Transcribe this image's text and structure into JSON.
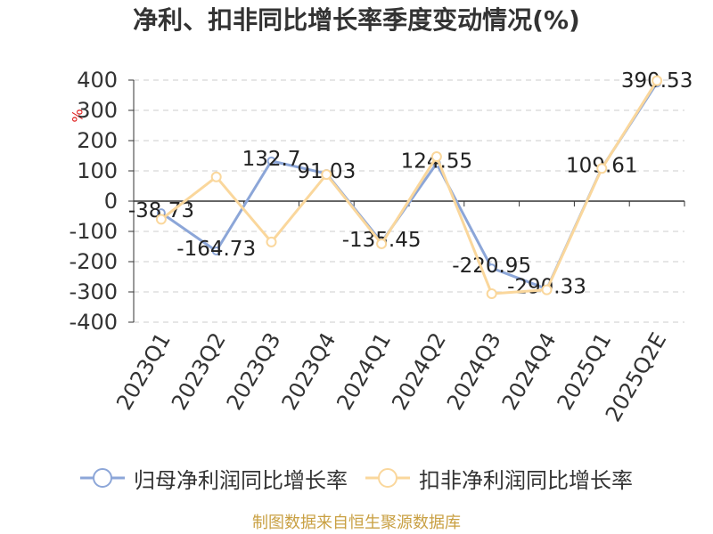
{
  "footer": "制图数据来自恒生聚源数据库",
  "colors": {
    "title": "#333333",
    "footer": "#c9a043",
    "ylabel": "#e0201f",
    "grid": "#cccccc",
    "axis": "#333333"
  },
  "chart_data": {
    "type": "line",
    "title": "净利、扣非同比增长率季度变动情况(%)",
    "xlabel": "",
    "ylabel": "%",
    "ylim": [
      -400,
      400
    ],
    "yticks": [
      400,
      300,
      200,
      100,
      0,
      -100,
      -200,
      -300,
      -400
    ],
    "grid": true,
    "legend_position": "bottom",
    "categories": [
      "2023Q1",
      "2023Q2",
      "2023Q3",
      "2023Q4",
      "2024Q1",
      "2024Q2",
      "2024Q3",
      "2024Q4",
      "2025Q1",
      "2025Q2E"
    ],
    "series": [
      {
        "name": "归母净利润同比增长率",
        "color": "#8ca6d8",
        "show_labels": true,
        "values": [
          -38.73,
          -164.73,
          132.7,
          91.03,
          -135.45,
          124.55,
          -220.95,
          -290.33,
          109.61,
          390.53
        ]
      },
      {
        "name": "扣非净利润同比增长率",
        "color": "#fad79c",
        "show_labels": false,
        "values": [
          -60,
          80,
          -135,
          88,
          -141,
          147,
          -306,
          -293,
          108,
          398
        ]
      }
    ]
  }
}
